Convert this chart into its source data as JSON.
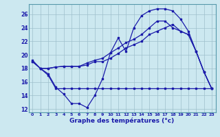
{
  "xlabel": "Graphe des températures (°c)",
  "background_color": "#cce8f0",
  "line_color": "#1a1aaa",
  "xlim": [
    -0.5,
    23.5
  ],
  "ylim": [
    11.5,
    27.5
  ],
  "yticks": [
    12,
    14,
    16,
    18,
    20,
    22,
    24,
    26
  ],
  "xticks": [
    0,
    1,
    2,
    3,
    4,
    5,
    6,
    7,
    8,
    9,
    10,
    11,
    12,
    13,
    14,
    15,
    16,
    17,
    18,
    19,
    20,
    21,
    22,
    23
  ],
  "line1_x": [
    0,
    1,
    2,
    3,
    4,
    5,
    6,
    7,
    8,
    9,
    10,
    11,
    12,
    13,
    14,
    15,
    16,
    17,
    18,
    19,
    20,
    21,
    22,
    23
  ],
  "line1_y": [
    19.2,
    18.0,
    17.2,
    15.2,
    14.2,
    12.8,
    12.8,
    12.2,
    14.0,
    16.5,
    20.3,
    22.5,
    20.5,
    24.0,
    25.8,
    26.5,
    26.8,
    26.8,
    26.5,
    25.3,
    23.5,
    20.5,
    17.5,
    15.0
  ],
  "line2_x": [
    1,
    2,
    3,
    4,
    5,
    6,
    7,
    8,
    9,
    10,
    11,
    12,
    13,
    14,
    15,
    16,
    17,
    18,
    19,
    20,
    21,
    22,
    23
  ],
  "line2_y": [
    18.0,
    17.0,
    15.0,
    15.0,
    15.0,
    15.0,
    15.0,
    15.0,
    15.0,
    15.0,
    15.0,
    15.0,
    15.0,
    15.0,
    15.0,
    15.0,
    15.0,
    15.0,
    15.0,
    15.0,
    15.0,
    15.0,
    15.0
  ],
  "line3_x": [
    0,
    1,
    2,
    3,
    4,
    5,
    6,
    7,
    8,
    9,
    10,
    11,
    12,
    13,
    14,
    15,
    16,
    17,
    18,
    19,
    20,
    21,
    22,
    23
  ],
  "line3_y": [
    19.0,
    18.0,
    18.0,
    18.2,
    18.3,
    18.3,
    18.3,
    18.8,
    19.2,
    19.5,
    20.3,
    21.0,
    21.8,
    22.3,
    23.0,
    24.0,
    25.0,
    25.0,
    24.0,
    23.5,
    23.0,
    20.5,
    17.5,
    15.0
  ],
  "line4_x": [
    0,
    1,
    2,
    3,
    4,
    5,
    6,
    7,
    8,
    9,
    10,
    11,
    12,
    13,
    14,
    15,
    16,
    17,
    18,
    19,
    20,
    21,
    22,
    23
  ],
  "line4_y": [
    19.0,
    18.0,
    18.0,
    18.2,
    18.3,
    18.3,
    18.3,
    18.5,
    19.0,
    19.0,
    19.5,
    20.2,
    21.0,
    21.5,
    22.0,
    23.0,
    23.5,
    24.0,
    24.5,
    23.5,
    23.0,
    20.5,
    17.5,
    15.0
  ]
}
